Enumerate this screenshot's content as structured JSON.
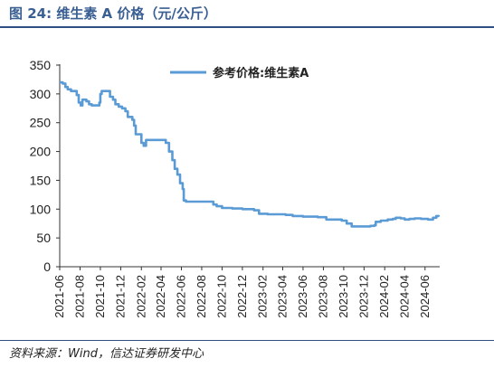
{
  "header": {
    "title": "图 24:  维生素 A 价格（元/公斤）"
  },
  "footer": {
    "source": "资料来源：Wind，信达证券研发中心"
  },
  "chart_data": {
    "type": "line",
    "title": "图 24:  维生素 A 价格（元/公斤）",
    "xlabel": "",
    "ylabel": "",
    "ylim": [
      0,
      350
    ],
    "yticks": [
      0,
      50,
      100,
      150,
      200,
      250,
      300,
      350
    ],
    "xticks": [
      "2021-06",
      "2021-08",
      "2021-10",
      "2021-12",
      "2022-02",
      "2022-04",
      "2022-06",
      "2022-08",
      "2022-10",
      "2022-12",
      "2023-02",
      "2023-04",
      "2023-06",
      "2023-08",
      "2023-10",
      "2023-12",
      "2024-02",
      "2024-04",
      "2024-06"
    ],
    "xlim": [
      "2021-06-01",
      "2024-07-15"
    ],
    "legend_position": "top-center",
    "color": "#5b9bd5",
    "series": [
      {
        "name": "参考价格:维生素A",
        "points": [
          [
            "2021-06-01",
            320
          ],
          [
            "2021-06-10",
            318
          ],
          [
            "2021-06-18",
            312
          ],
          [
            "2021-06-25",
            308
          ],
          [
            "2021-07-05",
            305
          ],
          [
            "2021-07-15",
            305
          ],
          [
            "2021-07-22",
            298
          ],
          [
            "2021-07-28",
            285
          ],
          [
            "2021-08-03",
            280
          ],
          [
            "2021-08-08",
            290
          ],
          [
            "2021-08-20",
            287
          ],
          [
            "2021-08-28",
            282
          ],
          [
            "2021-09-05",
            280
          ],
          [
            "2021-09-20",
            280
          ],
          [
            "2021-09-28",
            285
          ],
          [
            "2021-10-01",
            300
          ],
          [
            "2021-10-05",
            305
          ],
          [
            "2021-10-25",
            305
          ],
          [
            "2021-10-30",
            295
          ],
          [
            "2021-11-08",
            290
          ],
          [
            "2021-11-15",
            282
          ],
          [
            "2021-11-25",
            278
          ],
          [
            "2021-12-05",
            275
          ],
          [
            "2021-12-15",
            270
          ],
          [
            "2021-12-22",
            260
          ],
          [
            "2022-01-05",
            255
          ],
          [
            "2022-01-10",
            245
          ],
          [
            "2022-01-15",
            230
          ],
          [
            "2022-01-25",
            230
          ],
          [
            "2022-02-01",
            215
          ],
          [
            "2022-02-08",
            210
          ],
          [
            "2022-02-15",
            220
          ],
          [
            "2022-02-25",
            220
          ],
          [
            "2022-03-15",
            220
          ],
          [
            "2022-04-05",
            220
          ],
          [
            "2022-04-15",
            215
          ],
          [
            "2022-04-25",
            200
          ],
          [
            "2022-05-05",
            185
          ],
          [
            "2022-05-12",
            170
          ],
          [
            "2022-05-20",
            160
          ],
          [
            "2022-05-28",
            145
          ],
          [
            "2022-06-05",
            135
          ],
          [
            "2022-06-08",
            115
          ],
          [
            "2022-06-15",
            113
          ],
          [
            "2022-07-01",
            113
          ],
          [
            "2022-08-01",
            113
          ],
          [
            "2022-08-25",
            113
          ],
          [
            "2022-09-05",
            108
          ],
          [
            "2022-09-15",
            105
          ],
          [
            "2022-10-01",
            102
          ],
          [
            "2022-11-01",
            101
          ],
          [
            "2022-12-01",
            100
          ],
          [
            "2022-12-20",
            100
          ],
          [
            "2023-01-05",
            98
          ],
          [
            "2023-01-20",
            92
          ],
          [
            "2023-02-15",
            91
          ],
          [
            "2023-03-15",
            91
          ],
          [
            "2023-04-10",
            90
          ],
          [
            "2023-05-01",
            88
          ],
          [
            "2023-06-01",
            87
          ],
          [
            "2023-07-15",
            86
          ],
          [
            "2023-08-10",
            82
          ],
          [
            "2023-09-05",
            82
          ],
          [
            "2023-09-25",
            80
          ],
          [
            "2023-10-10",
            75
          ],
          [
            "2023-10-25",
            70
          ],
          [
            "2023-11-20",
            70
          ],
          [
            "2023-12-20",
            71
          ],
          [
            "2024-01-01",
            72
          ],
          [
            "2024-01-05",
            78
          ],
          [
            "2024-01-20",
            80
          ],
          [
            "2024-02-10",
            82
          ],
          [
            "2024-02-25",
            83
          ],
          [
            "2024-03-05",
            85
          ],
          [
            "2024-03-20",
            84
          ],
          [
            "2024-04-01",
            82
          ],
          [
            "2024-04-15",
            83
          ],
          [
            "2024-05-01",
            84
          ],
          [
            "2024-05-20",
            83
          ],
          [
            "2024-06-10",
            82
          ],
          [
            "2024-06-25",
            85
          ],
          [
            "2024-07-05",
            88
          ],
          [
            "2024-07-12",
            87
          ]
        ]
      }
    ]
  }
}
